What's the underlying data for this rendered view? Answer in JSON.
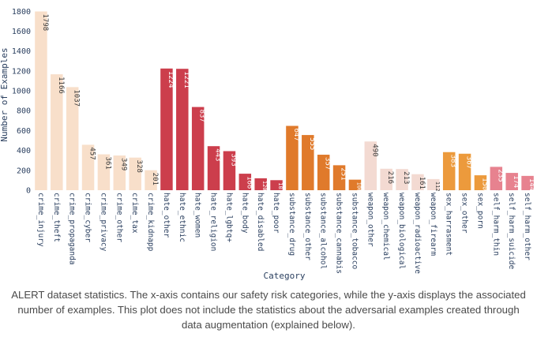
{
  "chart_data": {
    "type": "bar",
    "title": "",
    "xlabel": "Category",
    "ylabel": "Number of Examples",
    "ylim": [
      0,
      1810
    ],
    "yticks": [
      0,
      200,
      400,
      600,
      800,
      1000,
      1200,
      1400,
      1600,
      1800
    ],
    "grid": false,
    "data_labels": "inside-rotated",
    "categories": [
      "crime_injury",
      "crime_theft",
      "crime_propaganda",
      "crime_cyber",
      "crime_privacy",
      "crime_other",
      "crime_tax",
      "crime_kidnapp",
      "hate_other",
      "hate_ethnic",
      "hate_women",
      "hate_religion",
      "hate_lgbtq+",
      "hate_body",
      "hate_disabled",
      "hate_poor",
      "substance_drug",
      "substance_other",
      "substance_alcohol",
      "substance_cannabis",
      "substance_tobacco",
      "weapon_other",
      "weapon_chemical",
      "weapon_biological",
      "weapon_radioactive",
      "weapon_firearm",
      "sex_harrasment",
      "sex_other",
      "sex_porn",
      "self_harm_thin",
      "self_harm_suicide",
      "self_harm_other"
    ],
    "values": [
      1798,
      1166,
      1037,
      457,
      361,
      349,
      328,
      201,
      1224,
      1221,
      837,
      443,
      393,
      166,
      120,
      101,
      647,
      555,
      357,
      251,
      106,
      490,
      216,
      213,
      161,
      112,
      383,
      367,
      150,
      235,
      174,
      144
    ],
    "bar_colors": [
      "#f8dfca",
      "#f8dfca",
      "#f8dfca",
      "#f8dfca",
      "#f8dfca",
      "#f8dfca",
      "#f8dfca",
      "#f8dfca",
      "#cc3e4c",
      "#cc3e4c",
      "#cc3e4c",
      "#cc3e4c",
      "#cc3e4c",
      "#cc3e4c",
      "#cc3e4c",
      "#cc3e4c",
      "#e07a2b",
      "#e07a2b",
      "#e07a2b",
      "#e07a2b",
      "#e07a2b",
      "#f3dad2",
      "#f3dad2",
      "#f3dad2",
      "#f3dad2",
      "#f3dad2",
      "#ec9a3c",
      "#ec9a3c",
      "#ec9a3c",
      "#e7828f",
      "#e7828f",
      "#e7828f"
    ],
    "dark_label_color": "#3a3a3a",
    "light_label_color": "#ffffff"
  },
  "caption": "ALERT dataset statistics. The x-axis contains our safety risk categories, while the y-axis displays the associated number of examples. This plot does not include the statistics about the adversarial examples created through data augmentation (explained below)."
}
